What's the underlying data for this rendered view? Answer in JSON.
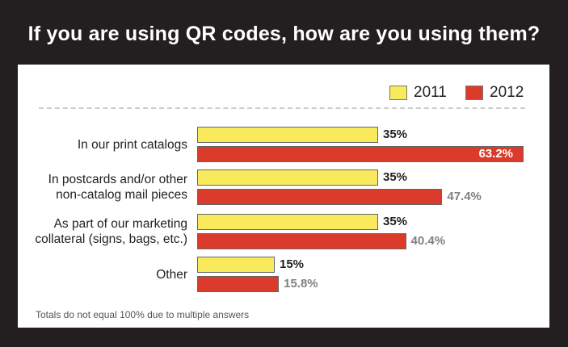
{
  "chart_data": {
    "type": "bar",
    "orientation": "horizontal",
    "title": "If you are using QR codes, how are you using them?",
    "categories": [
      [
        "In our print catalogs"
      ],
      [
        "In postcards and/or other",
        "non-catalog mail pieces"
      ],
      [
        "As part of our marketing",
        "collateral (signs, bags, etc.)"
      ],
      [
        "Other"
      ]
    ],
    "series": [
      {
        "name": "2011",
        "color": "#f9e95c",
        "values": [
          35,
          35,
          35,
          15
        ],
        "labels": [
          "35%",
          "35%",
          "35%",
          "15%"
        ]
      },
      {
        "name": "2012",
        "color": "#db3b2b",
        "values": [
          63.2,
          47.4,
          40.4,
          15.8
        ],
        "labels": [
          "63.2%",
          "47.4%",
          "40.4%",
          "15.8%"
        ]
      }
    ],
    "legend": "top-right",
    "footnote": "Totals do not equal 100% due to multiple answers"
  }
}
